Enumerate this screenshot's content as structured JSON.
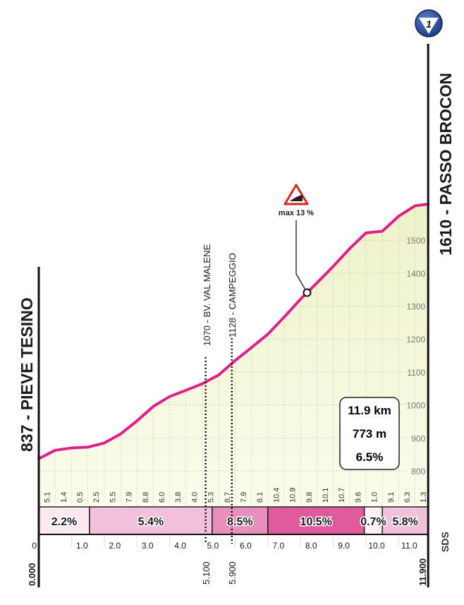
{
  "chart_data": {
    "type": "area",
    "start": {
      "label": "837 - PIEVE TESINO",
      "altitude": 837,
      "km": 0
    },
    "finish": {
      "label": "1610 - PASSO BROCON",
      "altitude": 1610,
      "km": 11.9,
      "badge": "1"
    },
    "waypoints": [
      {
        "label": "1070 - BV. VAL MALENE",
        "km": 5.1,
        "km_label": "5.100",
        "altitude": 1070
      },
      {
        "label": "1128 - CAMPEGGIO",
        "km": 5.9,
        "km_label": "5.900",
        "altitude": 1128
      }
    ],
    "max_gradient": {
      "label": "max 13 %",
      "km": 8.2
    },
    "summary": {
      "distance": "11.9 km",
      "elevation_gain": "773 m",
      "avg_gradient": "6.5%"
    },
    "gradients_per_500m": [
      "5.1",
      "1.4",
      "0.5",
      "2.5",
      "5.5",
      "7.9",
      "8.8",
      "6.0",
      "3.8",
      "4.0",
      "5.3",
      "8.7",
      "7.9",
      "8.1",
      "10.4",
      "10.9",
      "9.8",
      "10.1",
      "10.7",
      "9.6",
      "1.0",
      "9.1",
      "6.3",
      "1.3"
    ],
    "sections": [
      {
        "from": 0,
        "to": 1.55,
        "label": "2.2%",
        "color": "#fbe8f1"
      },
      {
        "from": 1.55,
        "to": 5.3,
        "label": "5.4%",
        "color": "#f2c0da"
      },
      {
        "from": 5.3,
        "to": 7.0,
        "label": "8.5%",
        "color": "#e890bd"
      },
      {
        "from": 7.0,
        "to": 9.95,
        "label": "10.5%",
        "color": "#e05a9e"
      },
      {
        "from": 9.95,
        "to": 10.5,
        "label": "0.7%",
        "color": "#fdf0f5"
      },
      {
        "from": 10.5,
        "to": 11.9,
        "label": "5.8%",
        "color": "#f2c0da"
      }
    ],
    "x_ticks": [
      "0",
      "1.0",
      "2.0",
      "3.0",
      "4.0",
      "5.0",
      "6.0",
      "7.0",
      "8.0",
      "9.0",
      "10.0",
      "11.0"
    ],
    "x_start_label": "0.000",
    "x_end_label": "11.900",
    "y_ticks": [
      800,
      900,
      1000,
      1100,
      1200,
      1300,
      1400,
      1500
    ],
    "xlim": [
      0,
      11.9
    ],
    "grid": true,
    "line_color": "#e0208a",
    "fill_color": "#f3f5d6"
  },
  "brand": "SDS"
}
